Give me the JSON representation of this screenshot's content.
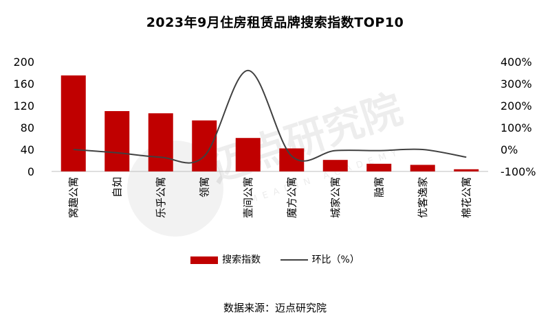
{
  "chart_data": {
    "type": "bar",
    "title": "2023年9月住房租赁品牌搜索指数TOP10",
    "categories": [
      "窝趣公寓",
      "自如",
      "乐乎公寓",
      "领寓",
      "壹间公寓",
      "魔方公寓",
      "城家公寓",
      "融寓",
      "优客逸家",
      "棉花公寓"
    ],
    "series": [
      {
        "name": "搜索指数",
        "type": "bar",
        "axis": "left",
        "color": "#c00000",
        "values": [
          175,
          110,
          106,
          93,
          61,
          42,
          21,
          14,
          12,
          4
        ]
      },
      {
        "name": "环比（%）",
        "type": "line",
        "axis": "right",
        "color": "#404040",
        "values": [
          0,
          -15,
          -35,
          -30,
          360,
          -30,
          -5,
          -5,
          0,
          -35
        ]
      }
    ],
    "y_left": {
      "range": [
        0,
        200
      ],
      "ticks": [
        0,
        40,
        80,
        120,
        160,
        200
      ]
    },
    "y_right": {
      "range": [
        -100,
        400
      ],
      "ticks": [
        "-100%",
        "0%",
        "100%",
        "200%",
        "300%",
        "400%"
      ]
    },
    "legend": {
      "position": "bottom",
      "items": [
        "搜索指数",
        "环比（%）"
      ]
    },
    "grid": false,
    "source": "数据来源：迈点研究院",
    "watermark": {
      "text": "迈点研究院",
      "subtext": "MEADIN ACADEMY"
    }
  }
}
